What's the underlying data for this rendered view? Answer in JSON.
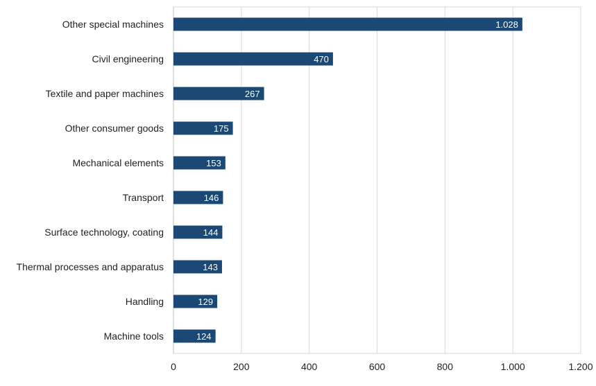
{
  "chart_data": {
    "type": "bar",
    "orientation": "horizontal",
    "categories": [
      "Other special machines",
      "Civil engineering",
      "Textile and paper machines",
      "Other consumer goods",
      "Mechanical elements",
      "Transport",
      "Surface technology, coating",
      "Thermal processes and apparatus",
      "Handling",
      "Machine tools"
    ],
    "values": [
      1028,
      470,
      267,
      175,
      153,
      146,
      144,
      143,
      129,
      124
    ],
    "value_labels": [
      "1.028",
      "470",
      "267",
      "175",
      "153",
      "146",
      "144",
      "143",
      "129",
      "124"
    ],
    "x_ticks": [
      0,
      200,
      400,
      600,
      800,
      1000,
      1200
    ],
    "x_tick_labels": [
      "0",
      "200",
      "400",
      "600",
      "800",
      "1.000",
      "1.200"
    ],
    "xlim": [
      0,
      1200
    ],
    "grid": "vertical",
    "legend": "none",
    "bar_color": "#1b4874",
    "title": "",
    "xlabel": "",
    "ylabel": ""
  }
}
